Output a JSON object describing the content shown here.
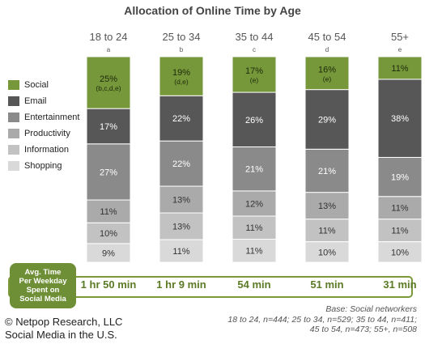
{
  "chart_data": {
    "type": "bar",
    "stacked": true,
    "percent": true,
    "title": "Allocation of Online Time by Age",
    "categories": [
      "18 to 24",
      "25 to 34",
      "35 to 44",
      "45 to 54",
      "55+"
    ],
    "category_letters": [
      "a",
      "b",
      "c",
      "d",
      "e"
    ],
    "series": [
      {
        "name": "Shopping",
        "color": "#d9d9d9",
        "values": [
          9,
          11,
          11,
          10,
          10
        ]
      },
      {
        "name": "Information",
        "color": "#c2c2c2",
        "values": [
          10,
          13,
          11,
          11,
          11
        ]
      },
      {
        "name": "Productivity",
        "color": "#aaaaaa",
        "values": [
          11,
          13,
          12,
          13,
          11
        ]
      },
      {
        "name": "Entertainment",
        "color": "#8a8a8a",
        "values": [
          27,
          22,
          21,
          21,
          19
        ]
      },
      {
        "name": "Email",
        "color": "#575757",
        "values": [
          17,
          22,
          26,
          29,
          38
        ]
      },
      {
        "name": "Social",
        "color": "#76983b",
        "values": [
          25,
          19,
          17,
          16,
          11
        ]
      }
    ],
    "significance": {
      "Social": [
        "(b,c,d,e)",
        "(d,e)",
        "(e)",
        "(e)",
        ""
      ]
    },
    "legend_order": [
      "Social",
      "Email",
      "Entertainment",
      "Productivity",
      "Information",
      "Shopping"
    ],
    "legend_position": "left"
  },
  "avg_time": {
    "label_lines": [
      "Avg. Time",
      "Per Weekday",
      "Spent on",
      "Social Media"
    ],
    "values": [
      "1 hr 50 min",
      "1 hr 9 min",
      "54 min",
      "51 min",
      "31 min"
    ]
  },
  "credit": {
    "line1": "© Netpop Research, LLC",
    "line2": "Social Media in the U.S."
  },
  "base_note": {
    "line1": "Base: Social networkers",
    "line2": "18 to 24, n=444; 25 to 34, n=529; 35 to 44, n=411;",
    "line3": "45 to 54, n=473; 55+, n=508"
  }
}
